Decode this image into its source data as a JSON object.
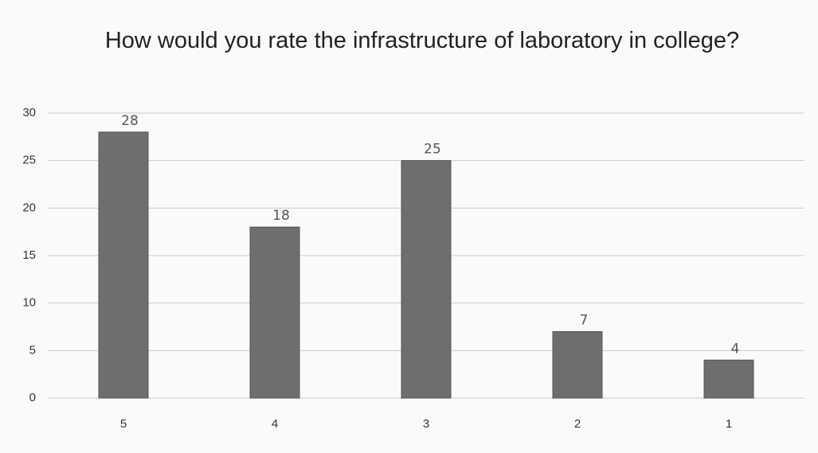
{
  "chart_data": {
    "type": "bar",
    "title": "How would you rate the infrastructure of laboratory in college?",
    "categories": [
      "5",
      "4",
      "3",
      "2",
      "1"
    ],
    "values": [
      28,
      18,
      25,
      7,
      4
    ],
    "color": "#6e6e6e",
    "ylim": [
      0,
      30
    ],
    "yticks": [
      0,
      5,
      10,
      15,
      20,
      25,
      30
    ],
    "grid": true
  }
}
